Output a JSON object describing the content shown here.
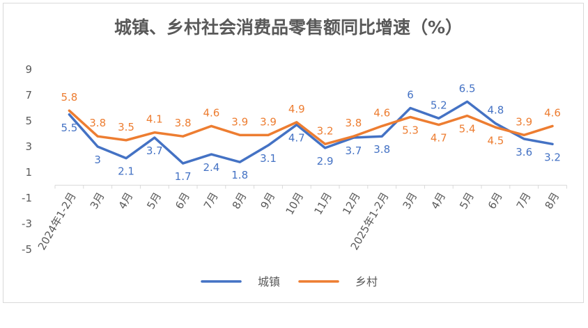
{
  "chart_data": {
    "type": "line",
    "title": "城镇、乡村社会消费品零售额同比增速（%）",
    "categories": [
      "2024年1-2月",
      "3月",
      "4月",
      "5月",
      "6月",
      "7月",
      "8月",
      "9月",
      "10月",
      "11月",
      "12月",
      "2025年1-2月",
      "3月",
      "4月",
      "5月",
      "6月",
      "7月",
      "8月"
    ],
    "ylim": [
      -5,
      9
    ],
    "yticks": [
      9,
      7,
      5,
      3,
      1,
      -1,
      -3,
      -5
    ],
    "grid": false,
    "legend_position": "bottom",
    "series": [
      {
        "name": "城镇",
        "color": "#4472c4",
        "label_color": "#4472c4",
        "values": [
          5.5,
          3,
          2.1,
          3.7,
          1.7,
          2.4,
          1.8,
          3.1,
          4.7,
          2.9,
          3.7,
          3.8,
          6,
          5.2,
          6.5,
          4.8,
          3.6,
          3.2
        ],
        "label_above": [
          false,
          false,
          false,
          false,
          false,
          false,
          false,
          false,
          false,
          false,
          false,
          false,
          true,
          true,
          true,
          true,
          false,
          false
        ]
      },
      {
        "name": "乡村",
        "color": "#ed7d31",
        "label_color": "#ed7d31",
        "values": [
          5.8,
          3.8,
          3.5,
          4.1,
          3.8,
          4.6,
          3.9,
          3.9,
          4.9,
          3.2,
          3.8,
          4.6,
          5.3,
          4.7,
          5.4,
          4.5,
          3.9,
          4.6
        ],
        "label_above": [
          true,
          true,
          true,
          true,
          true,
          true,
          true,
          true,
          true,
          true,
          true,
          true,
          false,
          false,
          false,
          false,
          true,
          true
        ]
      }
    ]
  }
}
